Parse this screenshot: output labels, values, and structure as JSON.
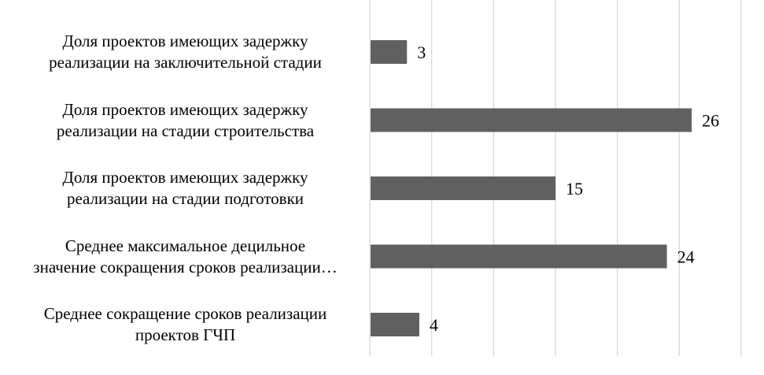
{
  "chart_data": {
    "type": "bar",
    "orientation": "horizontal",
    "categories": [
      "Доля проектов имеющих задержку\nреализации на заключительной стадии",
      "Доля проектов имеющих задержку\nреализации на стадии строительства",
      "Доля проектов имеющих задержку\nреализации на стадии подготовки",
      "Среднее максимальное  децильное\nзначение сокращения сроков реализации…",
      "Среднее сокращение сроков реализации\nпроектов ГЧП"
    ],
    "values": [
      3,
      26,
      15,
      24,
      4
    ],
    "data_labels": [
      "3",
      "26",
      "15",
      "24",
      "4"
    ],
    "xlim": [
      0,
      30
    ],
    "grid_step": 5,
    "grid": true,
    "bar_color": "#606060",
    "grid_color": "#d9d9d9",
    "title": "",
    "xlabel": "",
    "ylabel": ""
  }
}
